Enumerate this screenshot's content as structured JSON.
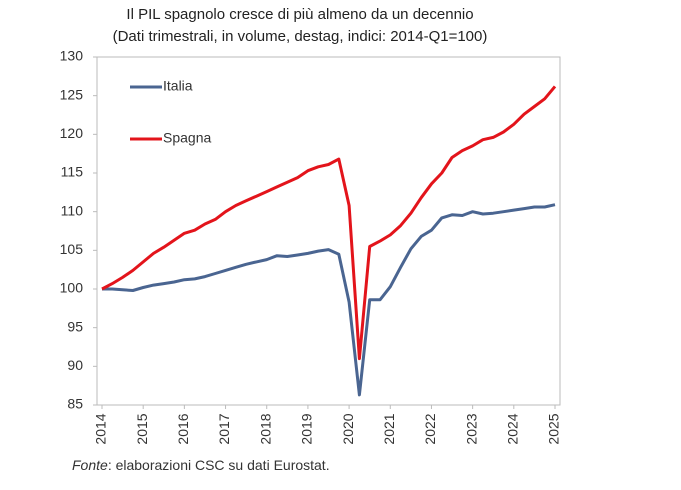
{
  "chart_data": {
    "type": "line",
    "title": "Il PIL spagnolo cresce di più almeno da un decennio",
    "subtitle": "(Dati trimestrali, in volume, destag, indici: 2014-Q1=100)",
    "source_label": "Fonte",
    "source_text": ": elaborazioni CSC su dati Eurostat.",
    "x": [
      2014,
      2014.25,
      2014.5,
      2014.75,
      2015,
      2015.25,
      2015.5,
      2015.75,
      2016,
      2016.25,
      2016.5,
      2016.75,
      2017,
      2017.25,
      2017.5,
      2017.75,
      2018,
      2018.25,
      2018.5,
      2018.75,
      2019,
      2019.25,
      2019.5,
      2019.75,
      2020,
      2020.25,
      2020.5,
      2020.75,
      2021,
      2021.25,
      2021.5,
      2021.75,
      2022,
      2022.25,
      2022.5,
      2022.75,
      2023,
      2023.25,
      2023.5,
      2023.75,
      2024,
      2024.25,
      2024.5,
      2024.75,
      2025
    ],
    "series": [
      {
        "name": "Italia",
        "color": "#4a6591",
        "values": [
          100,
          100.0,
          99.9,
          99.8,
          100.2,
          100.5,
          100.7,
          100.9,
          101.2,
          101.3,
          101.6,
          102.0,
          102.4,
          102.8,
          103.2,
          103.5,
          103.8,
          104.3,
          104.2,
          104.4,
          104.6,
          104.9,
          105.1,
          104.5,
          98.3,
          86.3,
          98.6,
          98.6,
          100.3,
          102.8,
          105.2,
          106.8,
          107.6,
          109.2,
          109.6,
          109.5,
          110.0,
          109.7,
          109.8,
          110.0,
          110.2,
          110.4,
          110.6,
          110.6,
          110.9
        ]
      },
      {
        "name": "Spagna",
        "color": "#e3141b",
        "values": [
          100,
          100.7,
          101.5,
          102.4,
          103.5,
          104.6,
          105.4,
          106.3,
          107.2,
          107.6,
          108.4,
          109.0,
          110.0,
          110.8,
          111.4,
          112.0,
          112.6,
          113.2,
          113.8,
          114.4,
          115.3,
          115.8,
          116.1,
          116.8,
          110.8,
          91.0,
          105.5,
          106.2,
          107.0,
          108.2,
          109.8,
          111.8,
          113.6,
          115.0,
          117.0,
          117.9,
          118.5,
          119.3,
          119.6,
          120.3,
          121.3,
          122.6,
          123.6,
          124.6,
          126.2
        ]
      }
    ],
    "xlim": [
      2014,
      2025
    ],
    "xticks": [
      2014,
      2015,
      2016,
      2017,
      2018,
      2019,
      2020,
      2021,
      2022,
      2023,
      2024,
      2025
    ],
    "ylim": [
      85,
      130
    ],
    "yticks": [
      85,
      90,
      95,
      100,
      105,
      110,
      115,
      120,
      125,
      130
    ],
    "grid": false,
    "legend": "upper left"
  }
}
